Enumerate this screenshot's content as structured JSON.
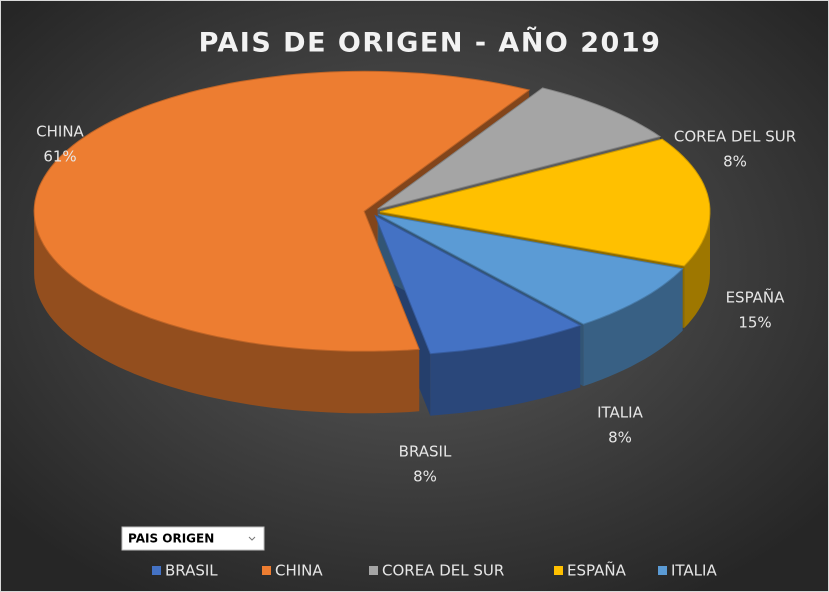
{
  "chart_data": {
    "type": "pie",
    "title": "PAIS DE ORIGEN - AÑO 2019",
    "categories": [
      "BRASIL",
      "CHINA",
      "COREA DEL SUR",
      "ESPAÑA",
      "ITALIA"
    ],
    "values": [
      8,
      61,
      8,
      15,
      8
    ],
    "value_labels": [
      "8%",
      "61%",
      "8%",
      "15%",
      "8%"
    ],
    "colors": [
      "#4472c4",
      "#ed7d31",
      "#a5a5a5",
      "#ffc000",
      "#5b9bd5"
    ],
    "legend": "bottom"
  },
  "filter": {
    "label": "PAIS ORIGEN"
  }
}
